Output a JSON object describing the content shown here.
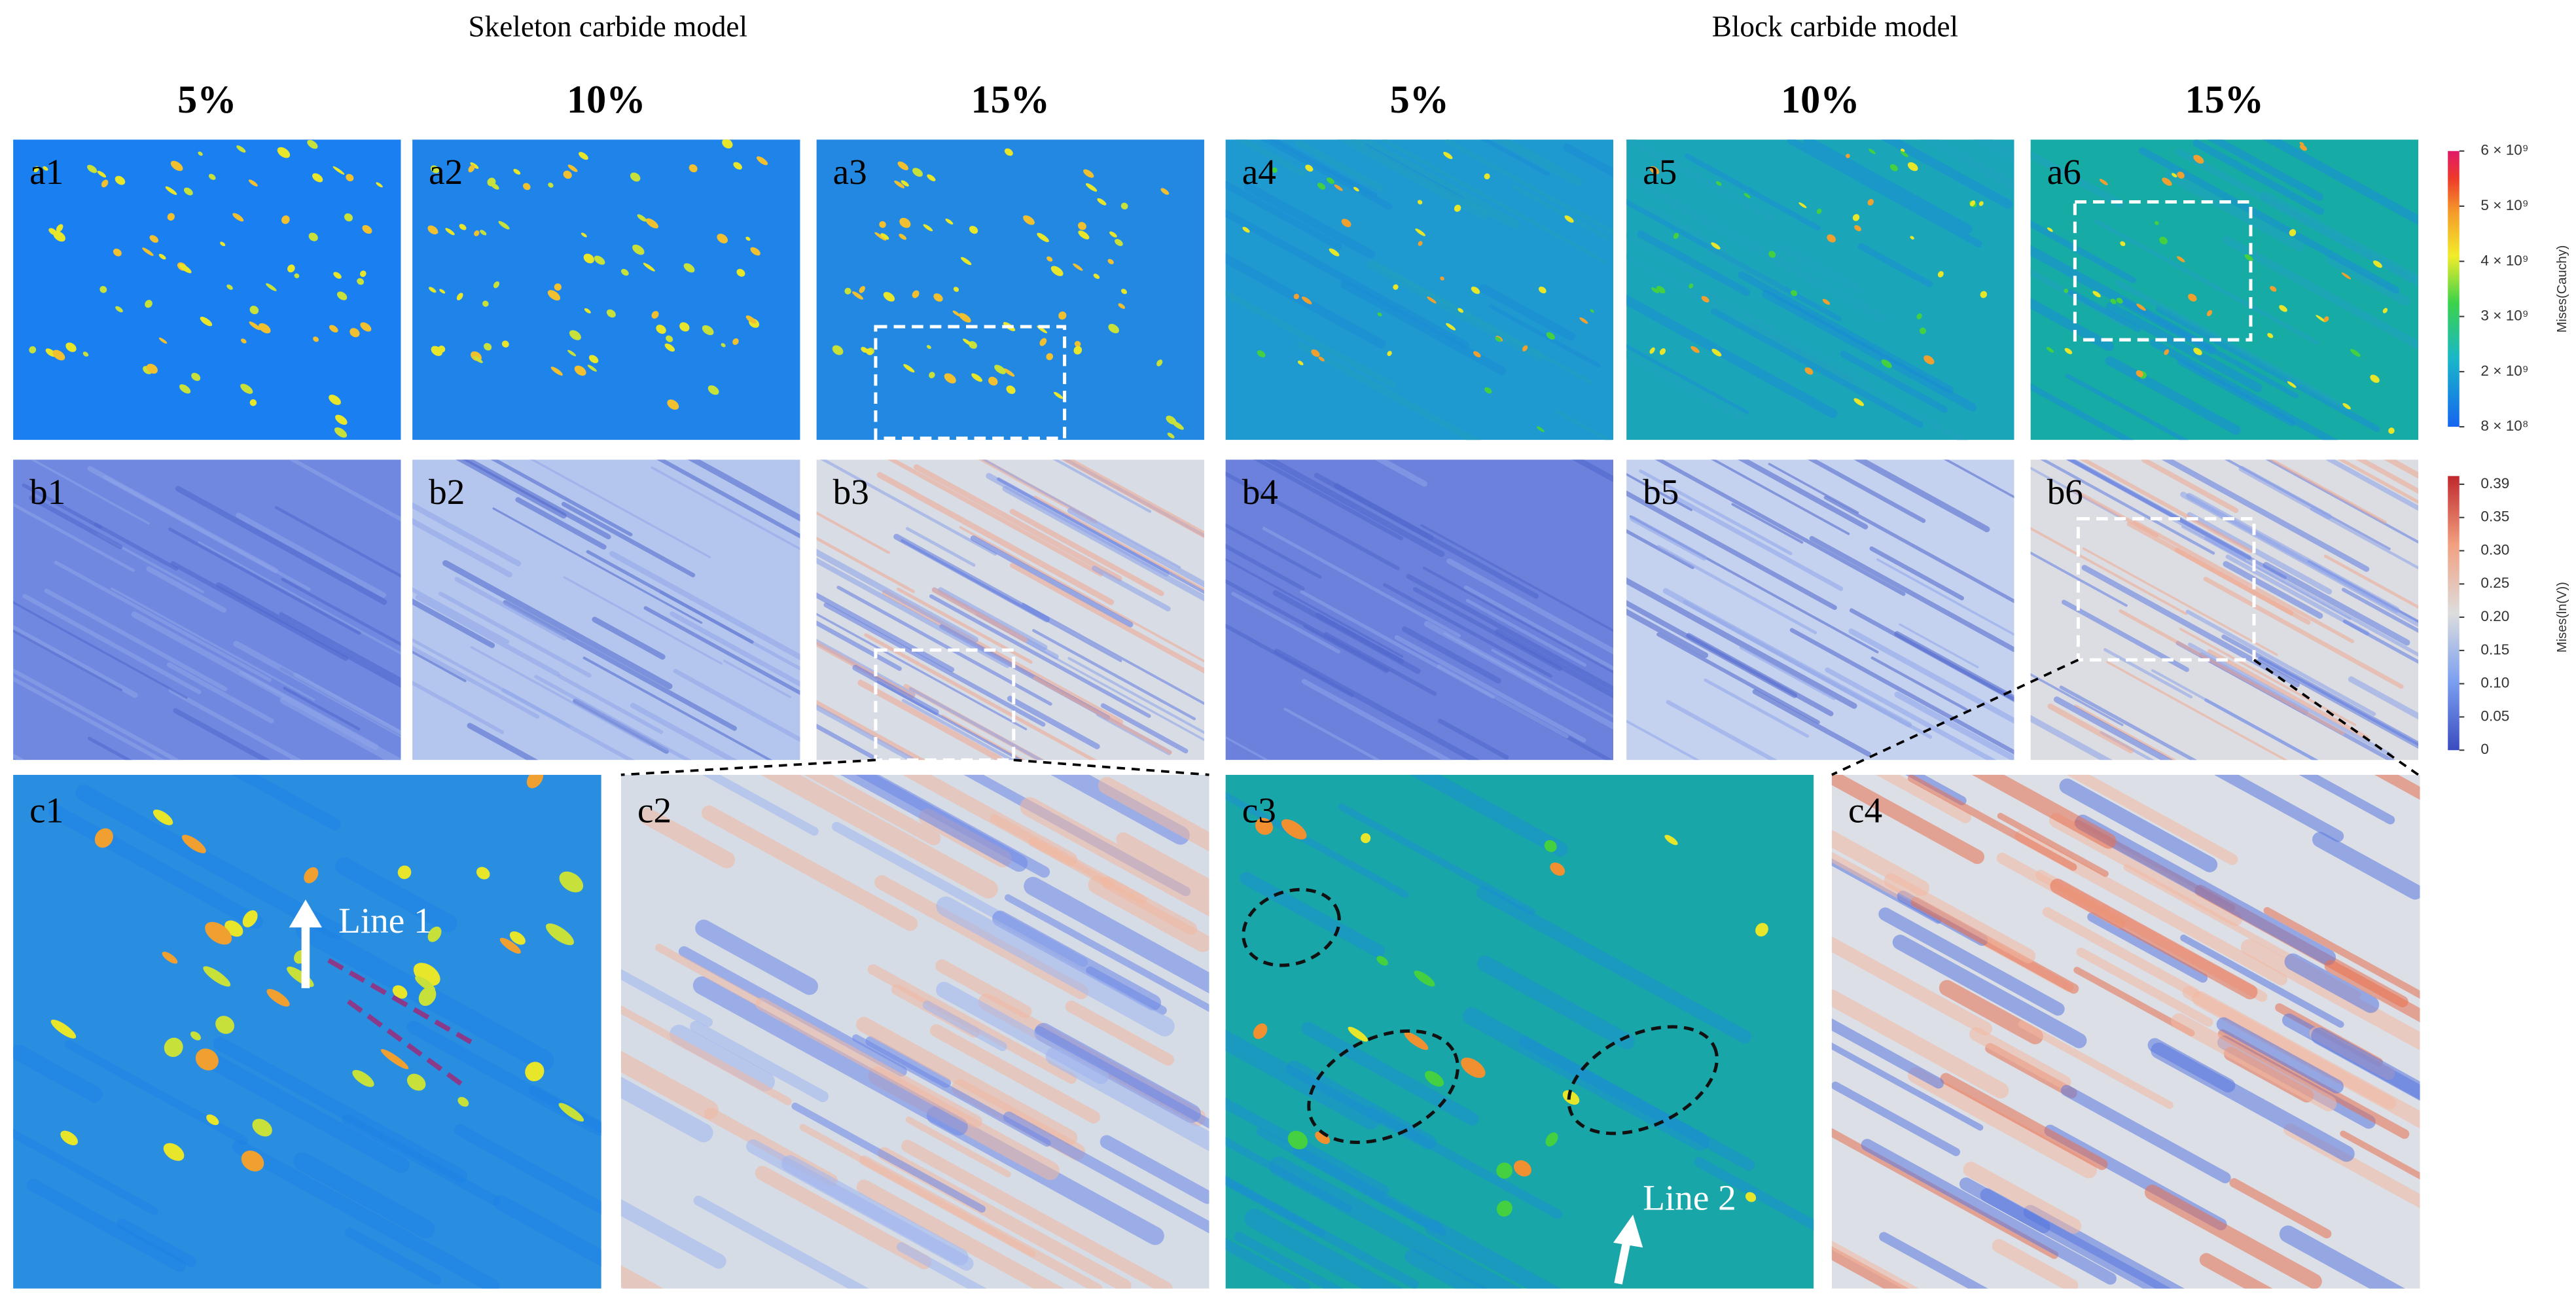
{
  "headers": [
    "Skeleton carbide model",
    "Block carbide model"
  ],
  "columns": [
    "5%",
    "10%",
    "15%",
    "5%",
    "10%",
    "15%"
  ],
  "panels": {
    "a": [
      "a1",
      "a2",
      "a3",
      "a4",
      "a5",
      "a6"
    ],
    "b": [
      "b1",
      "b2",
      "b3",
      "b4",
      "b5",
      "b6"
    ],
    "c": [
      "c1",
      "c2",
      "c3",
      "c4"
    ]
  },
  "annotations": [
    "Line 1",
    "Line 2"
  ],
  "colorbars": [
    {
      "title": "Mises(Cauchy)",
      "labels": [
        "6 × 10⁹",
        "5 × 10⁹",
        "4 × 10⁹",
        "3 × 10⁹",
        "2 × 10⁹",
        "8 × 10⁸"
      ]
    },
    {
      "title": "Mises(ln(V))",
      "labels": [
        "0.39",
        "0.35",
        "0.30",
        "0.25",
        "0.20",
        "0.15",
        "0.10",
        "0.05",
        "0"
      ]
    }
  ]
}
